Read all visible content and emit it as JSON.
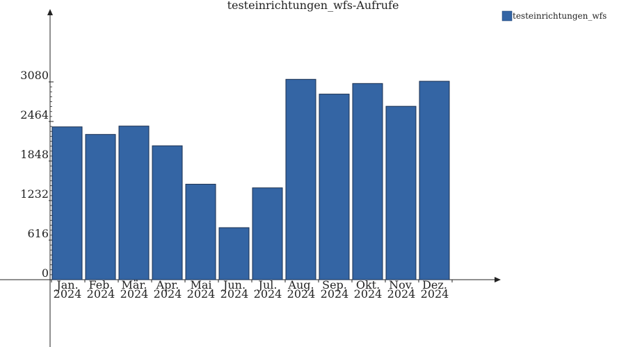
{
  "chart_data": {
    "type": "bar",
    "title": "testeinrichtungen_wfs-Aufrufe",
    "xlabel": "",
    "ylabel": "",
    "categories": [
      [
        "Jan.",
        "2024"
      ],
      [
        "Feb.",
        "2024"
      ],
      [
        "Mär.",
        "2024"
      ],
      [
        "Apr.",
        "2024"
      ],
      [
        "Mai",
        "2024"
      ],
      [
        "Jun.",
        "2024"
      ],
      [
        "Jul.",
        "2024"
      ],
      [
        "Aug.",
        "2024"
      ],
      [
        "Sep.",
        "2024"
      ],
      [
        "Okt.",
        "2024"
      ],
      [
        "Nov.",
        "2024"
      ],
      [
        "Dez.",
        "2024"
      ]
    ],
    "series": [
      {
        "name": "testeinrichtungen_wfs",
        "color": "#3465a4",
        "values": [
          2380,
          2262,
          2392,
          2085,
          1487,
          810,
          1430,
          3120,
          2890,
          3055,
          2700,
          3090
        ]
      }
    ],
    "yticks": [
      0,
      616,
      1232,
      1848,
      2464,
      3080
    ],
    "ylim": [
      0,
      4100
    ],
    "grid": false,
    "legend_position": "top-right"
  }
}
